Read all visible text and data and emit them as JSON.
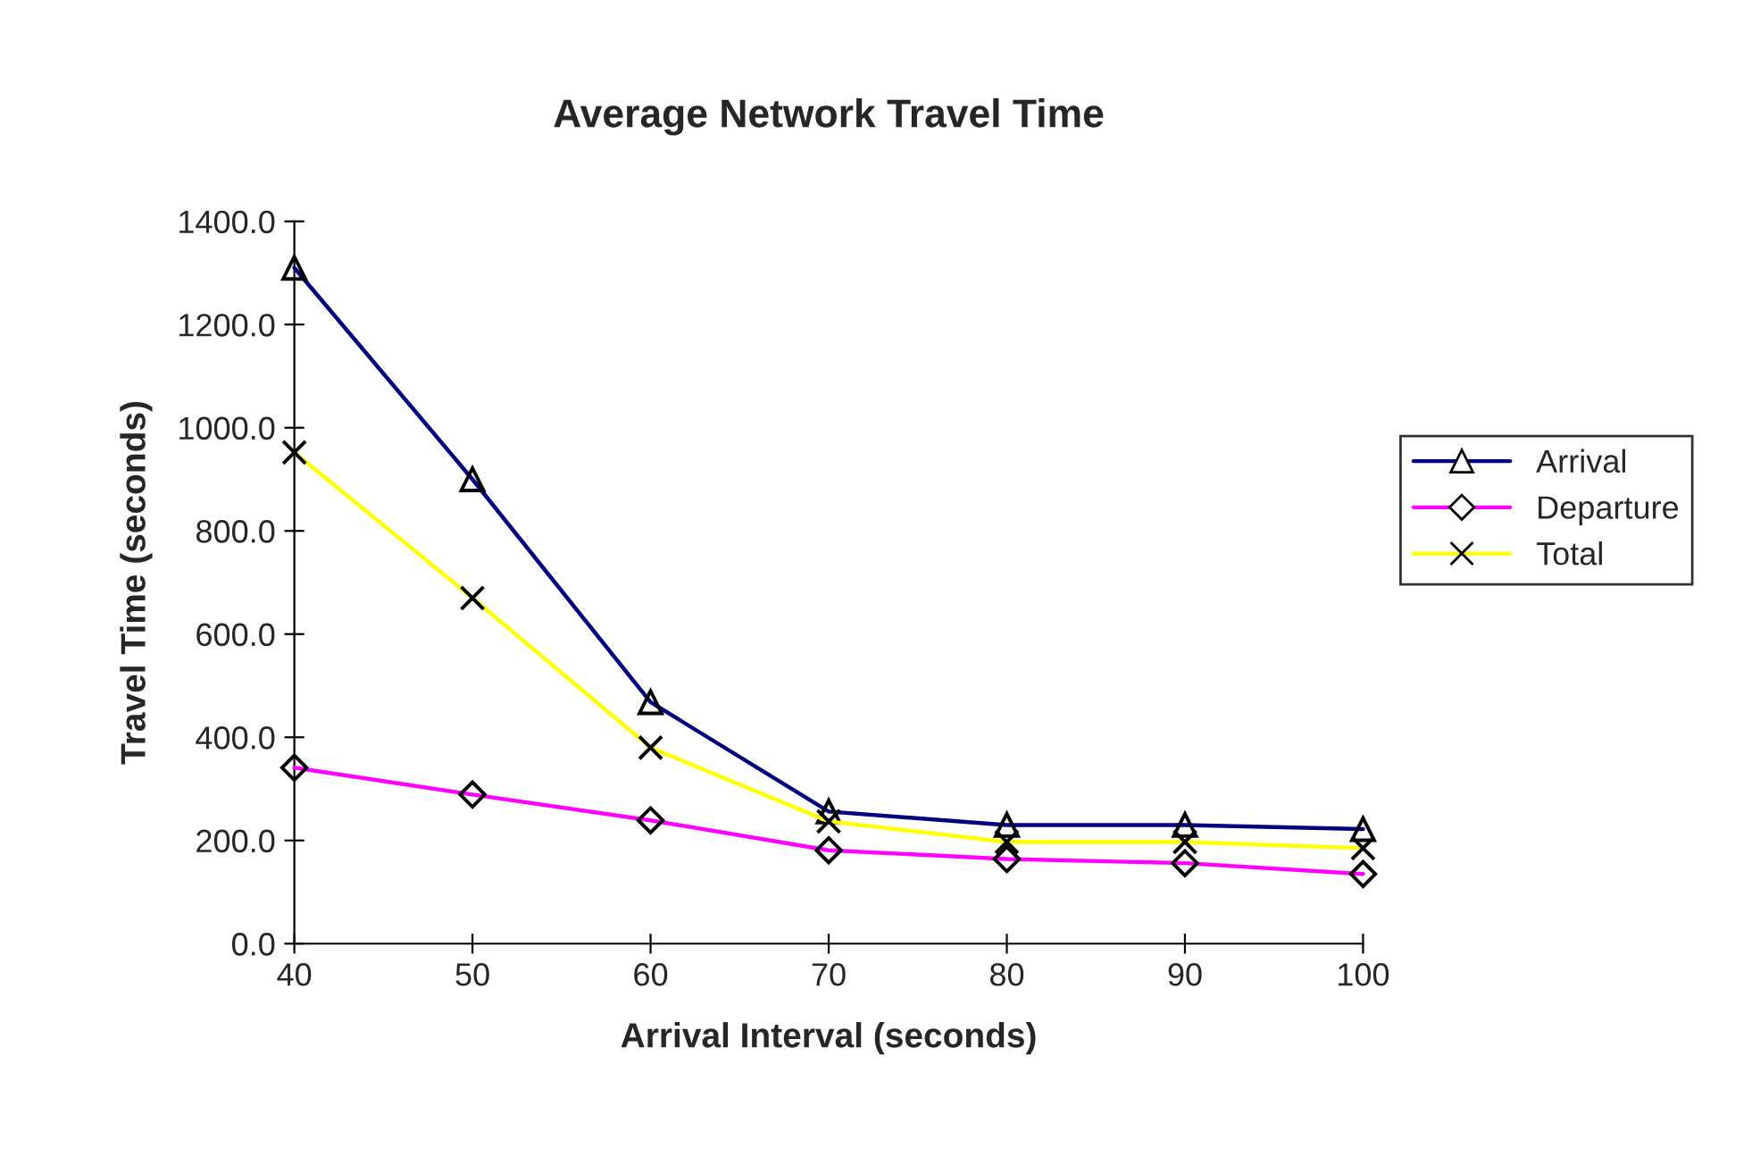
{
  "chart_data": {
    "type": "line",
    "title": "Average Network Travel Time",
    "xlabel": "Arrival Interval (seconds)",
    "ylabel": "Travel Time (seconds)",
    "x": [
      40,
      50,
      60,
      70,
      80,
      90,
      100
    ],
    "series": [
      {
        "name": "Arrival",
        "color": "#000080",
        "marker": "triangle",
        "values": [
          1310,
          900,
          468,
          256,
          230,
          230,
          222
        ]
      },
      {
        "name": "Departure",
        "color": "#ff00ff",
        "marker": "diamond",
        "values": [
          341,
          289,
          239,
          181,
          164,
          156,
          135
        ]
      },
      {
        "name": "Total",
        "color": "#ffff00",
        "marker": "cross",
        "values": [
          952,
          670,
          380,
          237,
          197,
          197,
          185
        ]
      }
    ],
    "xlim": [
      40,
      100
    ],
    "xticks": [
      40,
      50,
      60,
      70,
      80,
      90,
      100
    ],
    "ylim": [
      0,
      1400
    ],
    "yticks": [
      {
        "value": 0,
        "label": "0.0"
      },
      {
        "value": 200,
        "label": "200.0"
      },
      {
        "value": 400,
        "label": "400.0"
      },
      {
        "value": 600,
        "label": "600.0"
      },
      {
        "value": 800,
        "label": "800.0"
      },
      {
        "value": 1000,
        "label": "1000.0"
      },
      {
        "value": 1200,
        "label": "1200.0"
      },
      {
        "value": 1400,
        "label": "1400.0"
      }
    ],
    "grid": false,
    "legend": "right",
    "line_style": "solid"
  }
}
